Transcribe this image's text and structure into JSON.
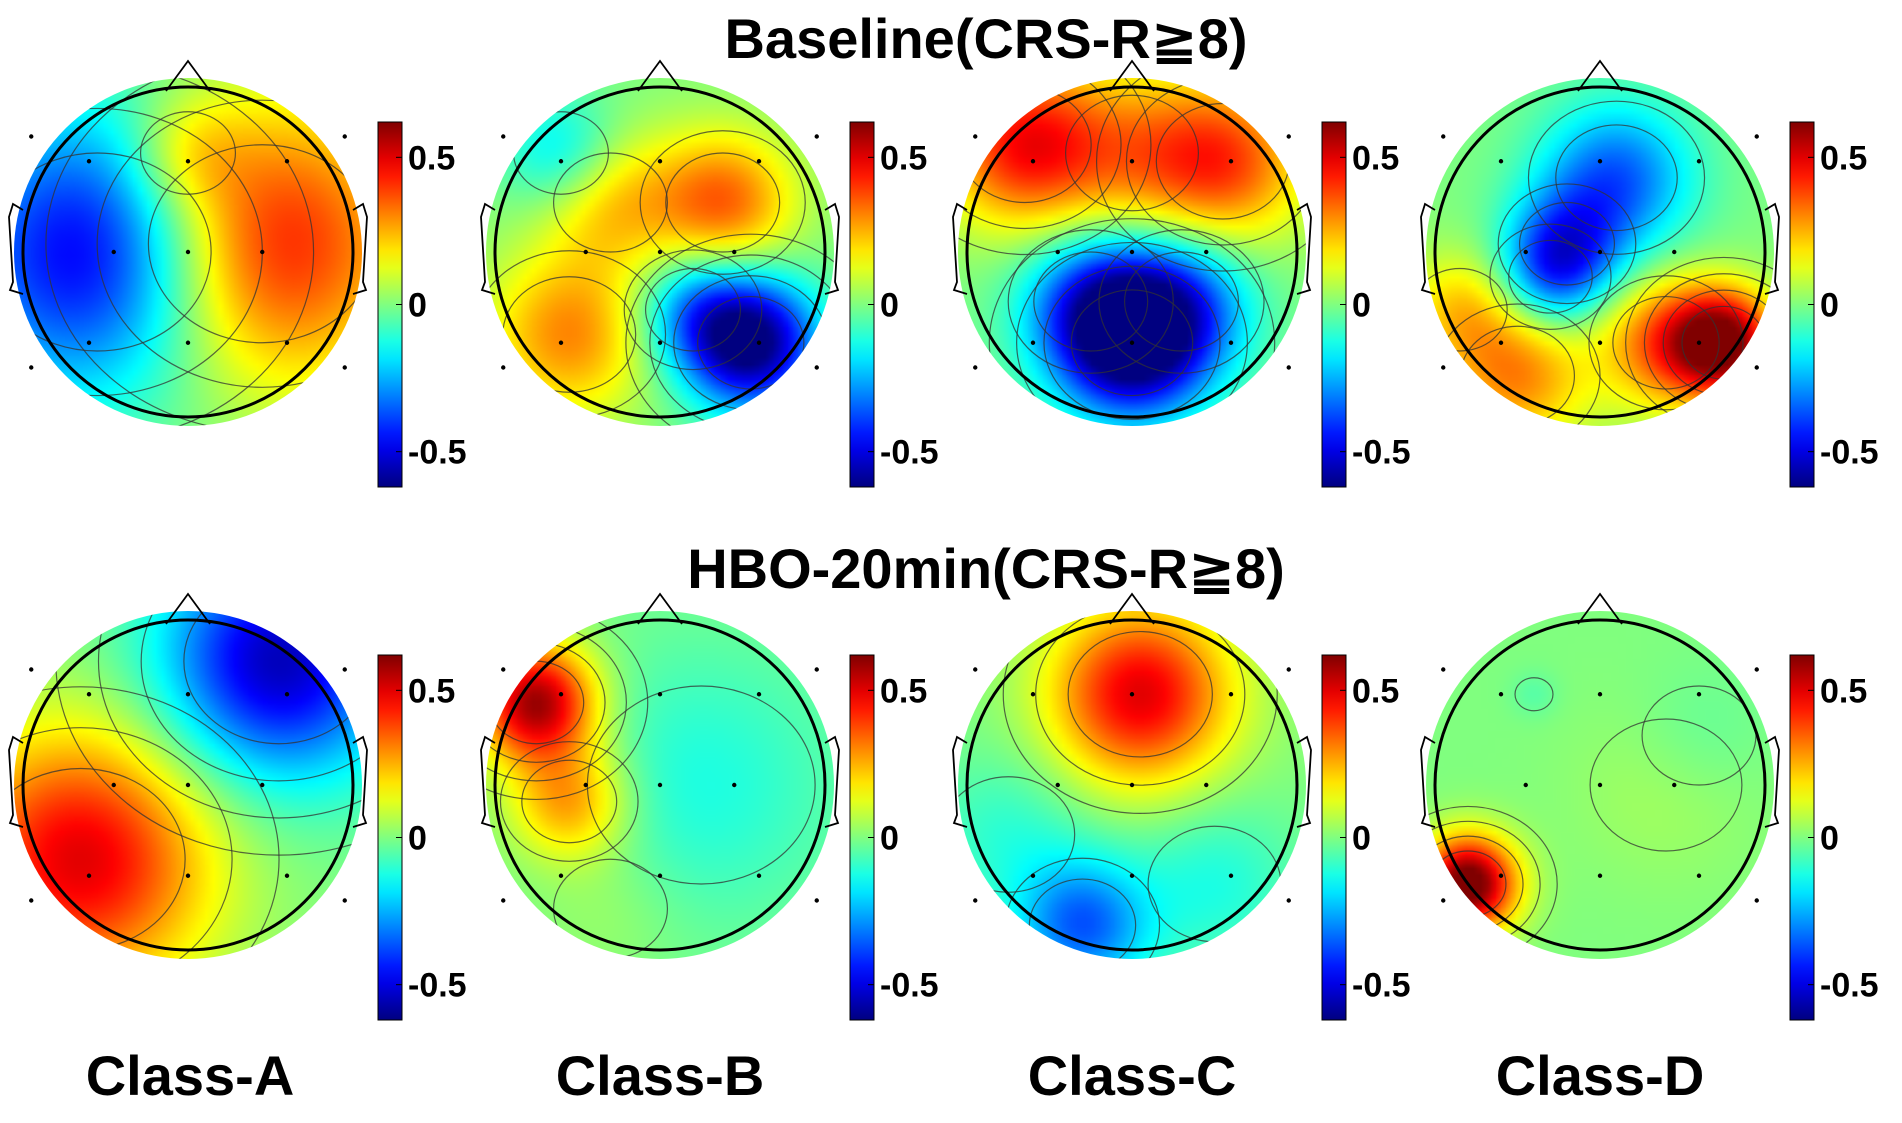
{
  "rows": [
    {
      "title": "Baseline(CRS-R≧8)",
      "maps": [
        {
          "id": "A",
          "centers": [
            [
              -0.55,
              0.0,
              -0.55,
              0.6
            ],
            [
              0.45,
              0.05,
              0.5,
              0.6
            ],
            [
              0.0,
              0.6,
              0.15,
              0.25
            ]
          ]
        },
        {
          "id": "B",
          "centers": [
            [
              0.55,
              -0.55,
              -0.65,
              0.28
            ],
            [
              0.2,
              -0.35,
              -0.25,
              0.25
            ],
            [
              0.38,
              0.3,
              0.35,
              0.3
            ],
            [
              -0.55,
              -0.5,
              0.3,
              0.35
            ],
            [
              -0.3,
              0.3,
              0.22,
              0.3
            ],
            [
              -0.6,
              0.6,
              -0.2,
              0.25
            ]
          ]
        },
        {
          "id": "C",
          "centers": [
            [
              0.0,
              -0.55,
              -0.65,
              0.32
            ],
            [
              -0.25,
              -0.3,
              -0.3,
              0.3
            ],
            [
              0.3,
              -0.3,
              -0.3,
              0.3
            ],
            [
              -0.65,
              0.65,
              0.45,
              0.35
            ],
            [
              0.55,
              0.55,
              0.38,
              0.35
            ],
            [
              0.0,
              0.6,
              0.2,
              0.35
            ]
          ]
        },
        {
          "id": "D",
          "centers": [
            [
              0.1,
              0.45,
              -0.35,
              0.32
            ],
            [
              -0.2,
              0.05,
              -0.3,
              0.25
            ],
            [
              -0.3,
              -0.15,
              -0.25,
              0.22
            ],
            [
              0.75,
              -0.55,
              0.6,
              0.22
            ],
            [
              0.4,
              -0.55,
              0.35,
              0.28
            ],
            [
              -0.5,
              -0.75,
              0.3,
              0.3
            ],
            [
              -0.85,
              -0.35,
              0.2,
              0.25
            ]
          ]
        }
      ]
    },
    {
      "title": "HBO-20min(CRS-R≧8)",
      "maps": [
        {
          "id": "A",
          "centers": [
            [
              -0.65,
              -0.45,
              0.5,
              0.55
            ],
            [
              0.55,
              0.75,
              -0.55,
              0.5
            ]
          ]
        },
        {
          "id": "B",
          "centers": [
            [
              -0.75,
              0.5,
              0.6,
              0.25
            ],
            [
              -0.55,
              -0.1,
              0.3,
              0.25
            ],
            [
              0.25,
              0.0,
              -0.12,
              0.6
            ],
            [
              -0.3,
              -0.75,
              0.05,
              0.3
            ]
          ]
        },
        {
          "id": "C",
          "centers": [
            [
              0.05,
              0.55,
              0.5,
              0.38
            ],
            [
              -0.3,
              -0.85,
              -0.35,
              0.28
            ],
            [
              0.5,
              -0.6,
              -0.12,
              0.35
            ],
            [
              -0.75,
              -0.3,
              -0.1,
              0.35
            ]
          ]
        },
        {
          "id": "D",
          "centers": [
            [
              -0.8,
              -0.6,
              0.7,
              0.2
            ],
            [
              -0.4,
              0.55,
              -0.05,
              0.1
            ],
            [
              0.4,
              0.0,
              0.05,
              0.4
            ],
            [
              0.6,
              0.3,
              -0.05,
              0.3
            ]
          ]
        }
      ]
    }
  ],
  "class_labels": [
    "Class-A",
    "Class-B",
    "Class-C",
    "Class-D"
  ],
  "colorbar": {
    "ticks": [
      "0.5",
      "0",
      "-0.5"
    ],
    "min": -0.62,
    "max": 0.62
  },
  "colormap": "jet",
  "colors": {
    "outline": "#000000",
    "contour": "#333333",
    "electrode": "#000000"
  }
}
